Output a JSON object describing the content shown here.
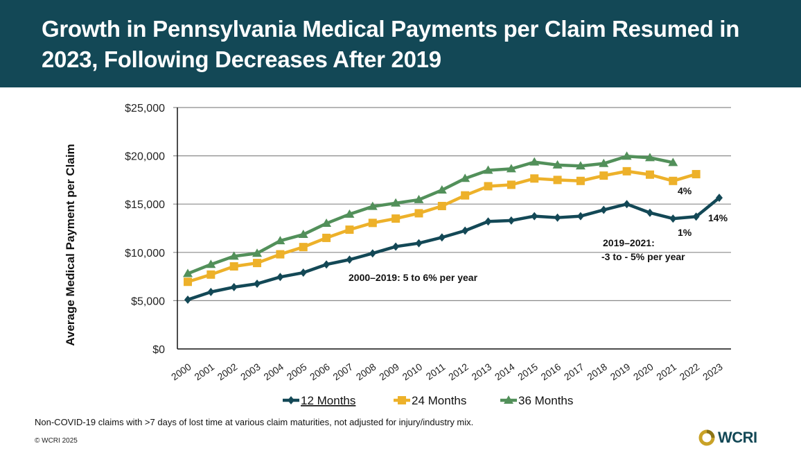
{
  "header": {
    "title": "Growth in Pennsylvania Medical Payments per Claim Resumed in 2023, Following Decreases After 2019"
  },
  "chart_data": {
    "type": "line",
    "title": "Growth in Pennsylvania Medical Payments per Claim Resumed in 2023, Following Decreases After 2019",
    "xlabel": "",
    "ylabel": "Average Medical Payment per Claim",
    "ylim": [
      0,
      25000
    ],
    "yticks": [
      0,
      5000,
      10000,
      15000,
      20000,
      25000
    ],
    "ytick_labels": [
      "$0",
      "$5,000",
      "$10,000",
      "$15,000",
      "$20,000",
      "$25,000"
    ],
    "grid": true,
    "legend_position": "bottom-center",
    "categories": [
      "2000",
      "2001",
      "2002",
      "2003",
      "2004",
      "2005",
      "2006",
      "2007",
      "2008",
      "2009",
      "2010",
      "2011",
      "2012",
      "2013",
      "2014",
      "2015",
      "2016",
      "2017",
      "2018",
      "2019",
      "2020",
      "2021",
      "2022",
      "2023"
    ],
    "series": [
      {
        "name": "12 Months",
        "color": "#134856",
        "marker": "diamond",
        "values": [
          5100,
          5900,
          6400,
          6750,
          7450,
          7900,
          8750,
          9250,
          9900,
          10600,
          10950,
          11550,
          12250,
          13200,
          13300,
          13750,
          13600,
          13750,
          14400,
          15000,
          14100,
          13500,
          13700,
          15650
        ]
      },
      {
        "name": "24 Months",
        "color": "#EDB12A",
        "marker": "square",
        "values": [
          6950,
          7700,
          8550,
          8900,
          9800,
          10550,
          11500,
          12350,
          13050,
          13500,
          14050,
          14800,
          15900,
          16850,
          17000,
          17650,
          17500,
          17400,
          17950,
          18400,
          18050,
          17400,
          18100,
          null
        ]
      },
      {
        "name": "36 Months",
        "color": "#52905A",
        "marker": "triangle",
        "values": [
          7800,
          8750,
          9600,
          9900,
          11200,
          11850,
          13000,
          13950,
          14750,
          15100,
          15450,
          16450,
          17650,
          18500,
          18650,
          19350,
          19050,
          18950,
          19200,
          19950,
          19800,
          19300,
          null,
          null
        ]
      }
    ],
    "annotations": [
      {
        "text": "2000–2019: 5 to 6% per year",
        "anchor_x": "2006",
        "anchor_y": 7600
      },
      {
        "text": "2019–2021:",
        "anchor_x": "2018",
        "anchor_y": 11300
      },
      {
        "text": "-3 to - 5% per year",
        "anchor_x": "2018",
        "anchor_y": 9800
      },
      {
        "text": "4%",
        "anchor_x": "2021",
        "anchor_y": 16500
      },
      {
        "text": "1%",
        "anchor_x": "2021",
        "anchor_y": 12200
      },
      {
        "text": "14%",
        "anchor_x": "2023",
        "anchor_y": 13400
      }
    ]
  },
  "footer": {
    "note": "Non-COVID-19 claims with >7 days of lost time at various claim maturities, not adjusted for injury/industry mix.",
    "copyright": "© WCRI 2025",
    "logo_text": "WCRI",
    "logo_icon": "wcri-ring-icon"
  }
}
